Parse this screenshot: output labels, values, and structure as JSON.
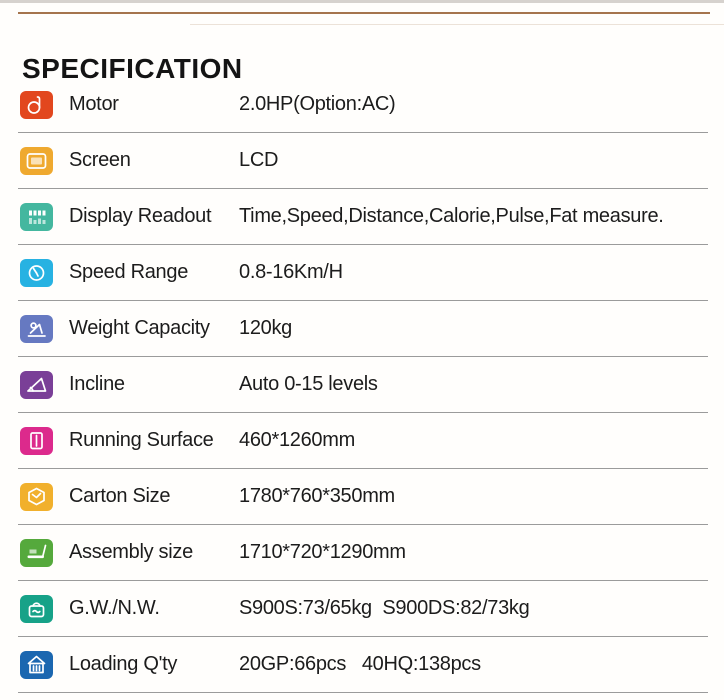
{
  "page": {
    "title": "SPECIFICATION"
  },
  "colors": {
    "top_rule": "#a5744d",
    "separator": "#9b9b9b",
    "text": "#1c1c1c"
  },
  "table": {
    "rows": [
      {
        "icon": "motor-icon",
        "color": "#e2471e",
        "label": "Motor",
        "value": "2.0HP(Option:AC)"
      },
      {
        "icon": "screen-icon",
        "color": "#efa92f",
        "label": "Screen",
        "value": "LCD"
      },
      {
        "icon": "display-readout-icon",
        "color": "#44b79f",
        "label": "Display Readout",
        "value": "Time,Speed,Distance,Calorie,Pulse,Fat measure."
      },
      {
        "icon": "speedometer-icon",
        "color": "#27b2e2",
        "label": "Speed Range",
        "value": "0.8-16Km/H"
      },
      {
        "icon": "weight-capacity-icon",
        "color": "#6679c1",
        "label": "Weight Capacity",
        "value": "120kg"
      },
      {
        "icon": "incline-icon",
        "color": "#7a3f97",
        "label": "Incline",
        "value": "Auto 0-15 levels"
      },
      {
        "icon": "running-belt-icon",
        "color": "#dc2a8c",
        "label": "Running Surface",
        "value": "460*1260mm"
      },
      {
        "icon": "carton-box-icon",
        "color": "#f1b02c",
        "label": "Carton Size",
        "value": "1780*760*350mm"
      },
      {
        "icon": "treadmill-icon",
        "color": "#55a93c",
        "label": "Assembly size",
        "value": "1710*720*1290mm"
      },
      {
        "icon": "kettlebell-weight-icon",
        "color": "#17a288",
        "label": "G.W./N.W.",
        "value": "S900S:73/65kg  S900DS:82/73kg"
      },
      {
        "icon": "container-icon",
        "color": "#1b67b0",
        "label": "Loading Q'ty",
        "value": "20GP:66pcs   40HQ:138pcs"
      }
    ]
  }
}
